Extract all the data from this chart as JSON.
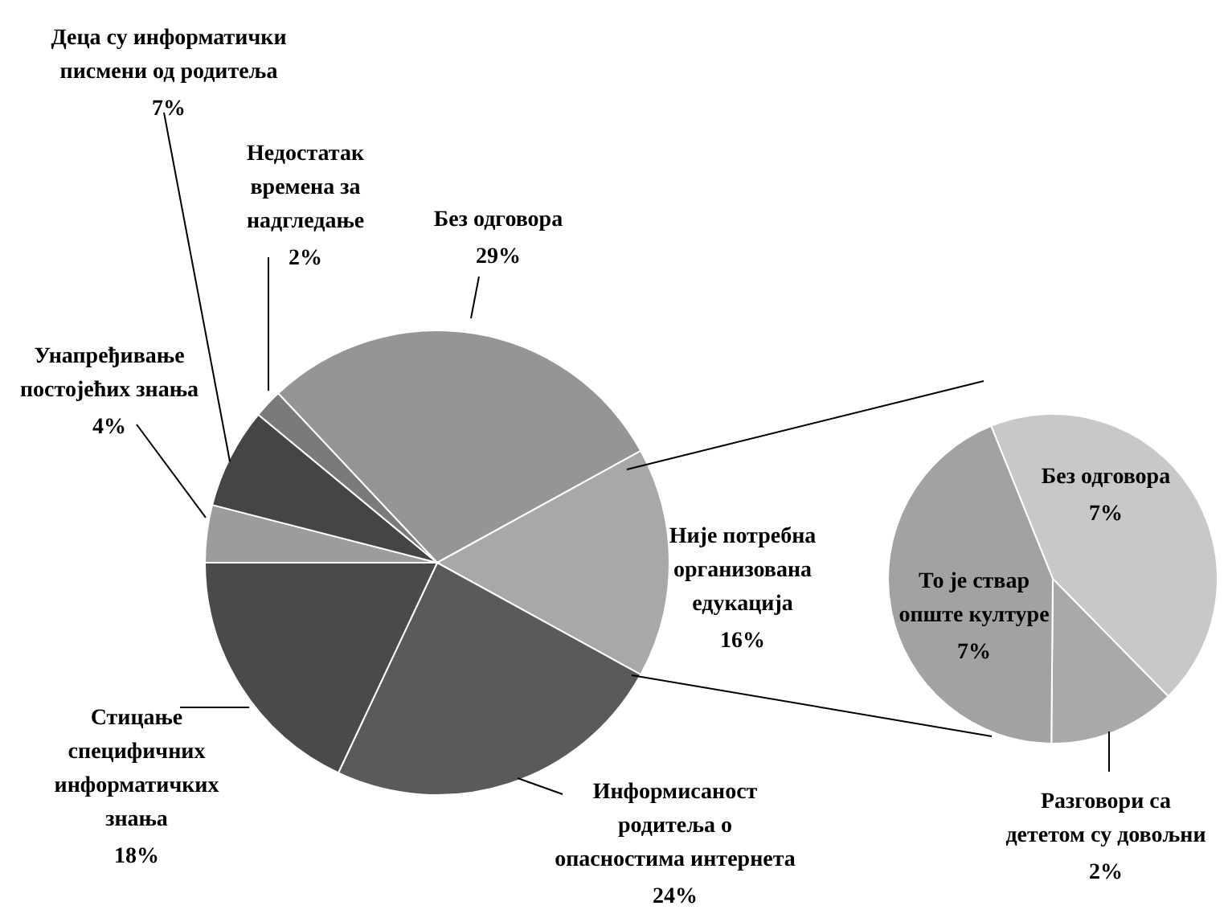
{
  "chart_data": [
    {
      "type": "pie",
      "categories": [
        "Без одговора",
        "Није потребна организована едукација",
        "Информисаност родитеља о опасностима интернета",
        "Стицање специфичних информатичких знања",
        "Унапређивање постојећих знања",
        "Деца су информатички писмени од родитеља",
        "Недостатак времена за надгледање"
      ],
      "values": [
        29,
        16,
        24,
        18,
        4,
        7,
        2
      ],
      "value_labels": [
        "29%",
        "16%",
        "24%",
        "18%",
        "4%",
        "7%",
        "2%"
      ],
      "colors": [
        "#959595",
        "#a8a8a8",
        "#5a5a5a",
        "#4a4a4a",
        "#9c9c9c",
        "#454545",
        "#7a7a7a"
      ]
    },
    {
      "type": "pie",
      "categories": [
        "Без одговора",
        "Разговори са дететом су довољни",
        "То је ствар опште културе"
      ],
      "values": [
        7,
        2,
        7
      ],
      "value_labels": [
        "7%",
        "2%",
        "7%"
      ],
      "colors": [
        "#c8c8c8",
        "#a9a9a9",
        "#a2a2a2"
      ]
    }
  ]
}
